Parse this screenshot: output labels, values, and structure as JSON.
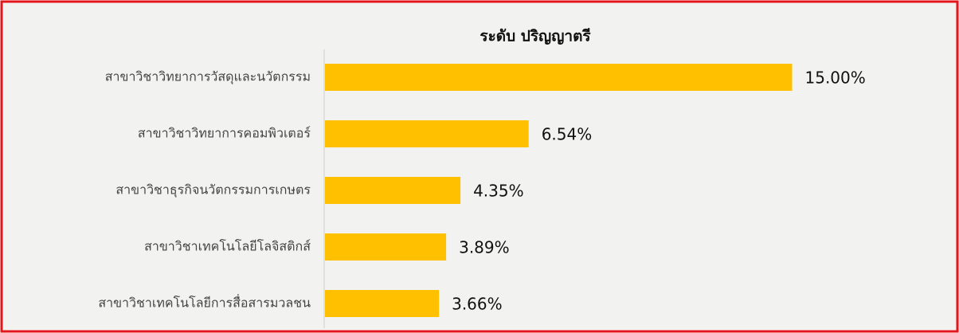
{
  "chart_data": {
    "type": "hbar",
    "title": "ระดับ ปริญญาตรี",
    "categories": [
      "สาขาวิชาวิทยาการวัสดุและนวัตกรรม",
      "สาขาวิชาวิทยาการคอมพิวเตอร์",
      "สาขาวิชาธุรกิจนวัตกรรมการเกษตร",
      "สาขาวิชาเทคโนโลยีโลจิสติกส์",
      "สาขาวิชาเทคโนโลยีการสื่อสารมวลชน"
    ],
    "values": [
      15.0,
      6.54,
      4.35,
      3.89,
      3.66
    ],
    "value_labels": [
      "15.00%",
      "6.54%",
      "4.35%",
      "3.89%",
      "3.66%"
    ],
    "color": "#ffc000"
  }
}
